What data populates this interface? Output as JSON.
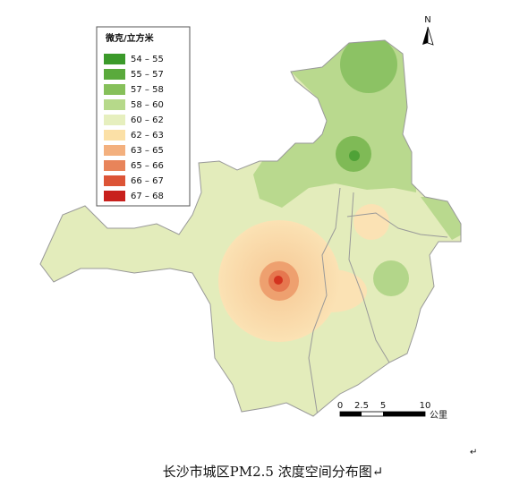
{
  "legend": {
    "title": "微克/立方米",
    "items": [
      {
        "label": "54 – 55",
        "color": "#3b9a2a"
      },
      {
        "label": "55 – 57",
        "color": "#5aaa3c"
      },
      {
        "label": "57 – 58",
        "color": "#86c05a"
      },
      {
        "label": "58 – 60",
        "color": "#b6d98a"
      },
      {
        "label": "60 – 62",
        "color": "#e6efbe"
      },
      {
        "label": "62 – 63",
        "color": "#fbe0a6"
      },
      {
        "label": "63 – 65",
        "color": "#f3b07e"
      },
      {
        "label": "65 – 66",
        "color": "#e8845a"
      },
      {
        "label": "66 – 67",
        "color": "#dc5436"
      },
      {
        "label": "67 – 68",
        "color": "#c8201c"
      }
    ]
  },
  "north": "N",
  "scale_bar": {
    "labels": [
      "0",
      "2.5",
      "5",
      "10"
    ],
    "unit": "公里"
  },
  "return_mark": "↵",
  "caption": "长沙市城区PM2.5 浓度空间分布图↵"
}
